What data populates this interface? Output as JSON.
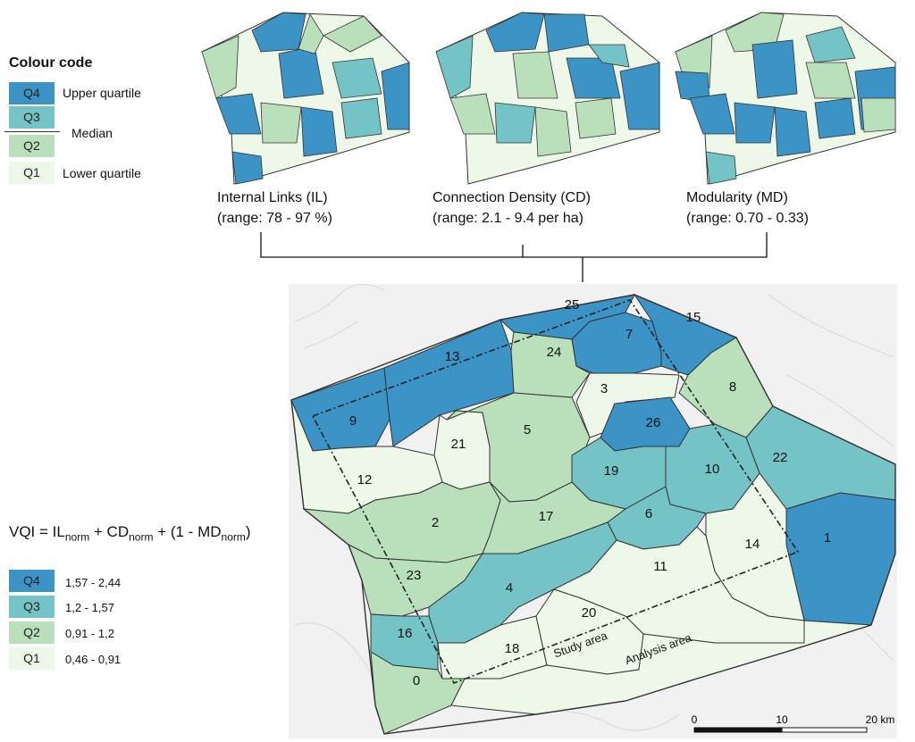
{
  "colors": {
    "Q4": "#3b93c6",
    "Q3": "#74c3c7",
    "Q2": "#b9e0bb",
    "Q1": "#eef8e8"
  },
  "legend": {
    "title": "Colour code",
    "items": [
      {
        "key": "Q4",
        "label": "Upper quartile"
      },
      {
        "key": "Q3",
        "label": ""
      },
      {
        "key": "Q2",
        "label": ""
      },
      {
        "key": "Q1",
        "label": "Lower quartile"
      }
    ],
    "median_label": "Median"
  },
  "indicators": [
    {
      "name": "Internal Links (IL)",
      "range": "(range: 78 - 97 %)"
    },
    {
      "name": "Connection Density (CD)",
      "range": "(range: 2.1 - 9.4 per ha)"
    },
    {
      "name": "Modularity (MD)",
      "range": "(range: 0.70 - 0.33)"
    }
  ],
  "formula": {
    "lhs": "VQI = IL",
    "sub1": "norm",
    "mid1": " + CD",
    "sub2": "norm",
    "mid2": " + (1 - MD",
    "sub3": "norm",
    "end": ")"
  },
  "vqi_legend": [
    {
      "key": "Q4",
      "range": "1,57 - 2,44"
    },
    {
      "key": "Q3",
      "range": "1,2 - 1,57"
    },
    {
      "key": "Q2",
      "range": "0,91 - 1,2"
    },
    {
      "key": "Q1",
      "range": "0,46 - 0,91"
    }
  ],
  "zones": [
    {
      "id": "0",
      "q": "Q2"
    },
    {
      "id": "1",
      "q": "Q4"
    },
    {
      "id": "2",
      "q": "Q2"
    },
    {
      "id": "3",
      "q": "Q1"
    },
    {
      "id": "4",
      "q": "Q3"
    },
    {
      "id": "5",
      "q": "Q2"
    },
    {
      "id": "6",
      "q": "Q3"
    },
    {
      "id": "7",
      "q": "Q4"
    },
    {
      "id": "8",
      "q": "Q2"
    },
    {
      "id": "9",
      "q": "Q4"
    },
    {
      "id": "10",
      "q": "Q3"
    },
    {
      "id": "11",
      "q": "Q1"
    },
    {
      "id": "12",
      "q": "Q1"
    },
    {
      "id": "13",
      "q": "Q4"
    },
    {
      "id": "14",
      "q": "Q1"
    },
    {
      "id": "15",
      "q": "Q4"
    },
    {
      "id": "16",
      "q": "Q3"
    },
    {
      "id": "17",
      "q": "Q2"
    },
    {
      "id": "18",
      "q": "Q1"
    },
    {
      "id": "19",
      "q": "Q3"
    },
    {
      "id": "20",
      "q": "Q1"
    },
    {
      "id": "21",
      "q": "Q1"
    },
    {
      "id": "22",
      "q": "Q3"
    },
    {
      "id": "23",
      "q": "Q2"
    },
    {
      "id": "24",
      "q": "Q2"
    },
    {
      "id": "25",
      "q": "Q4"
    },
    {
      "id": "26",
      "q": "Q4"
    }
  ],
  "map_labels": {
    "study_area": "Study area",
    "analysis_area": "Analysis area"
  },
  "scale_bar": {
    "ticks": [
      "0",
      "10",
      "20 km"
    ]
  }
}
